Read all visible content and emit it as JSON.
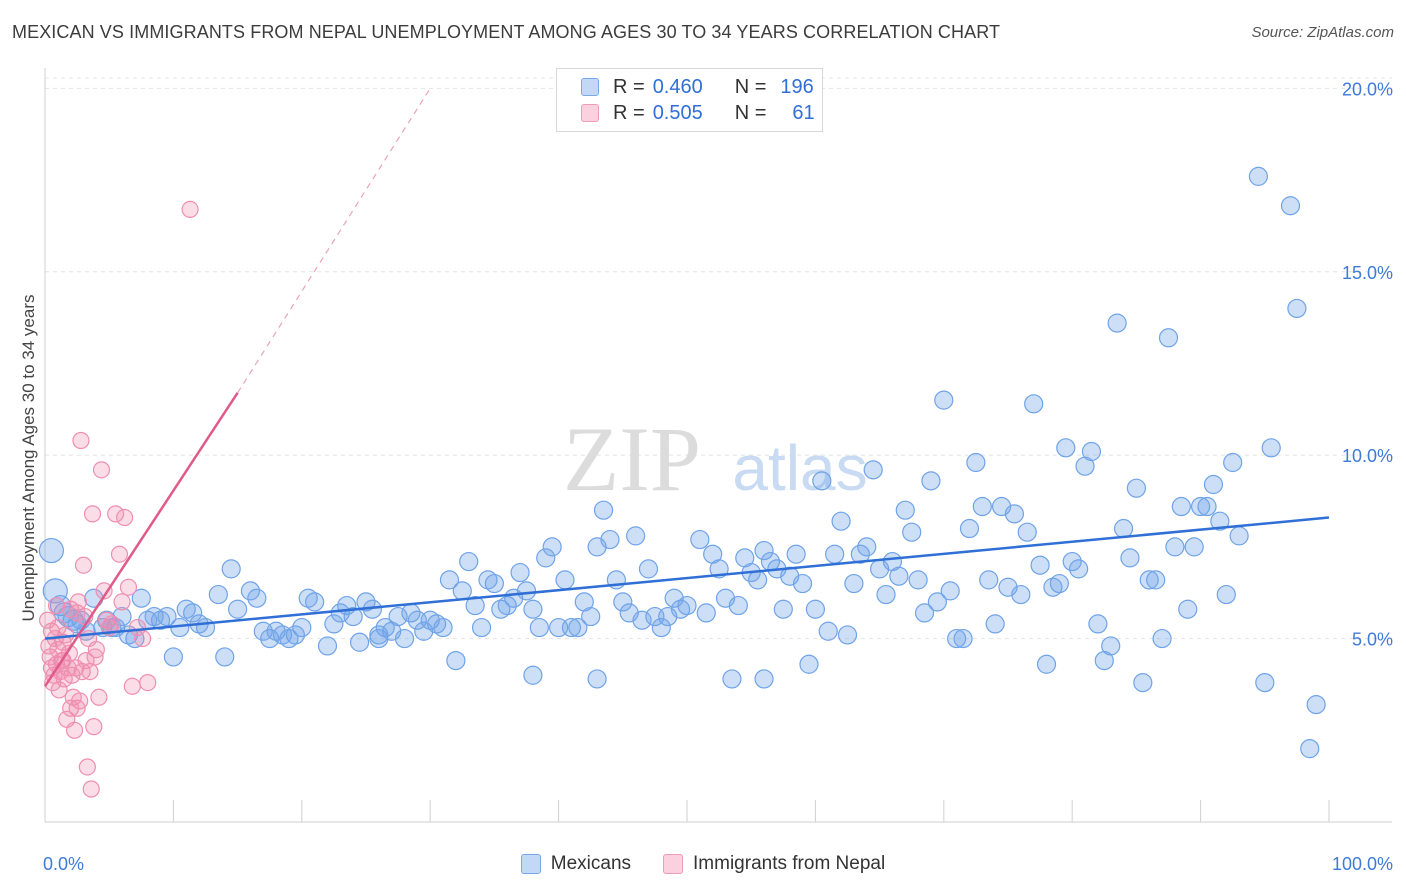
{
  "title": "MEXICAN VS IMMIGRANTS FROM NEPAL UNEMPLOYMENT AMONG AGES 30 TO 34 YEARS CORRELATION CHART",
  "source": "Source: ZipAtlas.com",
  "watermark": {
    "zip": "ZIP",
    "atlas": "atlas"
  },
  "legend": {
    "r_label": "R =",
    "n_label": "N =",
    "rows": [
      {
        "r": "0.460",
        "n": "196"
      },
      {
        "r": "0.505",
        "n": "61"
      }
    ]
  },
  "bottom_legend": [
    "Mexicans",
    "Immigrants from Nepal"
  ],
  "colors": {
    "blue": "#6fa3e8",
    "pink": "#ef8fb0",
    "blue_line": "#2f6fd6",
    "pink_line": "#e05a8a",
    "tick_text": "#3d7bd9"
  },
  "chart_data": {
    "type": "scatter",
    "title": "MEXICAN VS IMMIGRANTS FROM NEPAL UNEMPLOYMENT AMONG AGES 30 TO 34 YEARS CORRELATION CHART",
    "xlabel": "",
    "ylabel": "Unemployment Among Ages 30 to 34 years",
    "xlim": [
      0,
      100
    ],
    "ylim": [
      0,
      20.5
    ],
    "x_tick_labels": [
      "0.0%",
      "100.0%"
    ],
    "y_ticks": [
      {
        "value": 5,
        "label": "5.0%"
      },
      {
        "value": 10,
        "label": "10.0%"
      },
      {
        "value": 15,
        "label": "15.0%"
      },
      {
        "value": 20,
        "label": "20.0%"
      }
    ],
    "series": [
      {
        "name": "Mexicans",
        "R": 0.46,
        "N": 196,
        "trend": {
          "x": [
            0,
            100
          ],
          "y": [
            5.0,
            8.3
          ]
        },
        "points": [
          [
            0.5,
            7.4
          ],
          [
            0.8,
            6.3
          ],
          [
            1.2,
            5.9
          ],
          [
            1.5,
            5.7
          ],
          [
            1.8,
            5.6
          ],
          [
            2.2,
            5.5
          ],
          [
            2.5,
            5.4
          ],
          [
            2.8,
            5.5
          ],
          [
            3.2,
            5.2
          ],
          [
            3.8,
            6.1
          ],
          [
            4.5,
            5.3
          ],
          [
            4.8,
            5.5
          ],
          [
            5.2,
            5.3
          ],
          [
            5.5,
            5.3
          ],
          [
            6.0,
            5.6
          ],
          [
            6.5,
            5.1
          ],
          [
            7.0,
            5.0
          ],
          [
            7.5,
            6.1
          ],
          [
            8.0,
            5.5
          ],
          [
            8.5,
            5.6
          ],
          [
            9.0,
            5.5
          ],
          [
            9.5,
            5.6
          ],
          [
            10.0,
            4.5
          ],
          [
            10.5,
            5.3
          ],
          [
            11.0,
            5.8
          ],
          [
            11.5,
            5.7
          ],
          [
            12.0,
            5.4
          ],
          [
            12.5,
            5.3
          ],
          [
            13.5,
            6.2
          ],
          [
            14.0,
            4.5
          ],
          [
            14.5,
            6.9
          ],
          [
            15.0,
            5.8
          ],
          [
            16.0,
            6.3
          ],
          [
            16.5,
            6.1
          ],
          [
            17.0,
            5.2
          ],
          [
            17.5,
            5.0
          ],
          [
            18.0,
            5.2
          ],
          [
            18.5,
            5.1
          ],
          [
            19.0,
            5.0
          ],
          [
            19.5,
            5.1
          ],
          [
            20.0,
            5.3
          ],
          [
            20.5,
            6.1
          ],
          [
            21.0,
            6.0
          ],
          [
            22.0,
            4.8
          ],
          [
            22.5,
            5.4
          ],
          [
            23.0,
            5.7
          ],
          [
            23.5,
            5.9
          ],
          [
            24.0,
            5.6
          ],
          [
            24.5,
            4.9
          ],
          [
            25.0,
            6.0
          ],
          [
            25.5,
            5.8
          ],
          [
            26.0,
            5.0
          ],
          [
            26.5,
            5.3
          ],
          [
            27.0,
            5.2
          ],
          [
            27.5,
            5.6
          ],
          [
            28.0,
            5.0
          ],
          [
            28.5,
            5.7
          ],
          [
            29.0,
            5.5
          ],
          [
            29.5,
            5.2
          ],
          [
            30.0,
            5.5
          ],
          [
            30.5,
            5.4
          ],
          [
            31.0,
            5.3
          ],
          [
            31.5,
            6.6
          ],
          [
            32.0,
            4.4
          ],
          [
            32.5,
            6.3
          ],
          [
            33.0,
            7.1
          ],
          [
            33.5,
            5.9
          ],
          [
            34.0,
            5.3
          ],
          [
            34.5,
            6.6
          ],
          [
            35.0,
            6.5
          ],
          [
            35.5,
            5.8
          ],
          [
            36.0,
            5.9
          ],
          [
            36.5,
            6.1
          ],
          [
            37.0,
            6.8
          ],
          [
            37.5,
            6.3
          ],
          [
            38.0,
            5.8
          ],
          [
            38.5,
            5.3
          ],
          [
            39.0,
            7.2
          ],
          [
            39.5,
            7.5
          ],
          [
            40.0,
            5.3
          ],
          [
            40.5,
            6.6
          ],
          [
            41.0,
            5.3
          ],
          [
            41.5,
            5.3
          ],
          [
            42.0,
            6.0
          ],
          [
            42.5,
            5.6
          ],
          [
            43.0,
            7.5
          ],
          [
            43.5,
            8.5
          ],
          [
            44.0,
            7.7
          ],
          [
            44.5,
            6.6
          ],
          [
            45.0,
            6.0
          ],
          [
            45.5,
            5.7
          ],
          [
            46.0,
            7.8
          ],
          [
            46.5,
            5.5
          ],
          [
            47.0,
            6.9
          ],
          [
            47.5,
            5.6
          ],
          [
            48.0,
            5.3
          ],
          [
            48.5,
            5.6
          ],
          [
            49.0,
            6.1
          ],
          [
            49.5,
            5.8
          ],
          [
            50.0,
            5.9
          ],
          [
            51.0,
            7.7
          ],
          [
            51.5,
            5.7
          ],
          [
            52.0,
            7.3
          ],
          [
            52.5,
            6.9
          ],
          [
            53.0,
            6.1
          ],
          [
            53.5,
            3.9
          ],
          [
            54.0,
            5.9
          ],
          [
            54.5,
            7.2
          ],
          [
            55.0,
            6.8
          ],
          [
            55.5,
            6.6
          ],
          [
            56.0,
            7.4
          ],
          [
            56.5,
            7.1
          ],
          [
            57.0,
            6.9
          ],
          [
            57.5,
            5.8
          ],
          [
            58.0,
            6.7
          ],
          [
            58.5,
            7.3
          ],
          [
            59.0,
            6.5
          ],
          [
            59.5,
            4.3
          ],
          [
            60.0,
            5.8
          ],
          [
            60.5,
            9.3
          ],
          [
            61.0,
            5.2
          ],
          [
            61.5,
            7.3
          ],
          [
            62.0,
            8.2
          ],
          [
            62.5,
            5.1
          ],
          [
            63.0,
            6.5
          ],
          [
            63.5,
            7.3
          ],
          [
            64.0,
            7.5
          ],
          [
            64.5,
            9.6
          ],
          [
            65.0,
            6.9
          ],
          [
            65.5,
            6.2
          ],
          [
            66.0,
            7.1
          ],
          [
            66.5,
            6.7
          ],
          [
            67.0,
            8.5
          ],
          [
            67.5,
            7.9
          ],
          [
            68.0,
            6.6
          ],
          [
            68.5,
            5.7
          ],
          [
            69.0,
            9.3
          ],
          [
            69.5,
            6.0
          ],
          [
            70.0,
            11.5
          ],
          [
            70.5,
            6.3
          ],
          [
            71.0,
            5.0
          ],
          [
            71.5,
            5.0
          ],
          [
            72.0,
            8.0
          ],
          [
            72.5,
            9.8
          ],
          [
            73.0,
            8.6
          ],
          [
            73.5,
            6.6
          ],
          [
            74.0,
            5.4
          ],
          [
            74.5,
            8.6
          ],
          [
            75.0,
            6.4
          ],
          [
            75.5,
            8.4
          ],
          [
            76.0,
            6.2
          ],
          [
            76.5,
            7.9
          ],
          [
            77.0,
            11.4
          ],
          [
            77.5,
            7.0
          ],
          [
            78.0,
            4.3
          ],
          [
            78.5,
            6.4
          ],
          [
            79.0,
            6.5
          ],
          [
            79.5,
            10.2
          ],
          [
            80.0,
            7.1
          ],
          [
            80.5,
            6.9
          ],
          [
            81.0,
            9.7
          ],
          [
            81.5,
            10.1
          ],
          [
            82.0,
            5.4
          ],
          [
            82.5,
            4.4
          ],
          [
            83.0,
            4.8
          ],
          [
            83.5,
            13.6
          ],
          [
            84.0,
            8.0
          ],
          [
            84.5,
            7.2
          ],
          [
            85.0,
            9.1
          ],
          [
            85.5,
            3.8
          ],
          [
            86.0,
            6.6
          ],
          [
            86.5,
            6.6
          ],
          [
            87.0,
            5.0
          ],
          [
            87.5,
            13.2
          ],
          [
            88.0,
            7.5
          ],
          [
            88.5,
            8.6
          ],
          [
            89.0,
            5.8
          ],
          [
            89.5,
            7.5
          ],
          [
            90.0,
            8.6
          ],
          [
            90.5,
            8.6
          ],
          [
            91.0,
            9.2
          ],
          [
            91.5,
            8.2
          ],
          [
            92.0,
            6.2
          ],
          [
            92.5,
            9.8
          ],
          [
            93.0,
            7.8
          ],
          [
            94.5,
            17.6
          ],
          [
            95.0,
            3.8
          ],
          [
            95.5,
            10.2
          ],
          [
            97.0,
            16.8
          ],
          [
            97.5,
            14.0
          ],
          [
            98.5,
            2.0
          ],
          [
            99.0,
            3.2
          ],
          [
            38.0,
            4.0
          ],
          [
            43.0,
            3.9
          ],
          [
            56.0,
            3.9
          ],
          [
            26.0,
            5.1
          ]
        ]
      },
      {
        "name": "Immigrants from Nepal",
        "R": 0.505,
        "N": 61,
        "trend": {
          "x": [
            0,
            15
          ],
          "y": [
            3.7,
            11.7
          ]
        },
        "trend_extension": {
          "x": [
            15,
            30
          ],
          "y": [
            11.7,
            20.0
          ]
        },
        "points": [
          [
            0.2,
            5.5
          ],
          [
            0.3,
            4.8
          ],
          [
            0.4,
            4.5
          ],
          [
            0.5,
            5.2
          ],
          [
            0.5,
            4.2
          ],
          [
            0.6,
            3.8
          ],
          [
            0.7,
            4.0
          ],
          [
            0.8,
            5.0
          ],
          [
            0.9,
            4.3
          ],
          [
            1.0,
            4.7
          ],
          [
            1.0,
            5.3
          ],
          [
            1.1,
            3.6
          ],
          [
            1.2,
            4.1
          ],
          [
            1.3,
            4.4
          ],
          [
            1.4,
            4.9
          ],
          [
            1.5,
            3.9
          ],
          [
            1.6,
            5.1
          ],
          [
            1.7,
            2.8
          ],
          [
            1.8,
            4.2
          ],
          [
            1.9,
            4.6
          ],
          [
            2.0,
            5.8
          ],
          [
            2.0,
            3.1
          ],
          [
            2.1,
            4.0
          ],
          [
            2.2,
            3.4
          ],
          [
            2.3,
            2.5
          ],
          [
            2.4,
            4.2
          ],
          [
            2.5,
            3.1
          ],
          [
            2.6,
            6.0
          ],
          [
            2.7,
            3.3
          ],
          [
            2.8,
            10.4
          ],
          [
            2.9,
            4.1
          ],
          [
            3.0,
            7.0
          ],
          [
            3.1,
            5.6
          ],
          [
            3.2,
            4.4
          ],
          [
            3.3,
            1.5
          ],
          [
            3.4,
            5.0
          ],
          [
            3.5,
            4.1
          ],
          [
            3.6,
            0.9
          ],
          [
            3.7,
            8.4
          ],
          [
            3.8,
            2.6
          ],
          [
            3.9,
            4.5
          ],
          [
            4.0,
            4.7
          ],
          [
            4.2,
            3.4
          ],
          [
            4.4,
            9.6
          ],
          [
            4.6,
            6.3
          ],
          [
            4.8,
            5.5
          ],
          [
            5.0,
            5.3
          ],
          [
            5.2,
            5.4
          ],
          [
            5.5,
            8.4
          ],
          [
            5.8,
            7.3
          ],
          [
            6.0,
            6.0
          ],
          [
            6.2,
            8.3
          ],
          [
            6.5,
            6.4
          ],
          [
            6.8,
            3.7
          ],
          [
            7.2,
            5.3
          ],
          [
            7.6,
            5.0
          ],
          [
            8.0,
            3.8
          ],
          [
            1.4,
            4.4
          ],
          [
            0.9,
            5.9
          ],
          [
            2.5,
            5.7
          ],
          [
            11.3,
            16.7
          ]
        ]
      }
    ]
  }
}
